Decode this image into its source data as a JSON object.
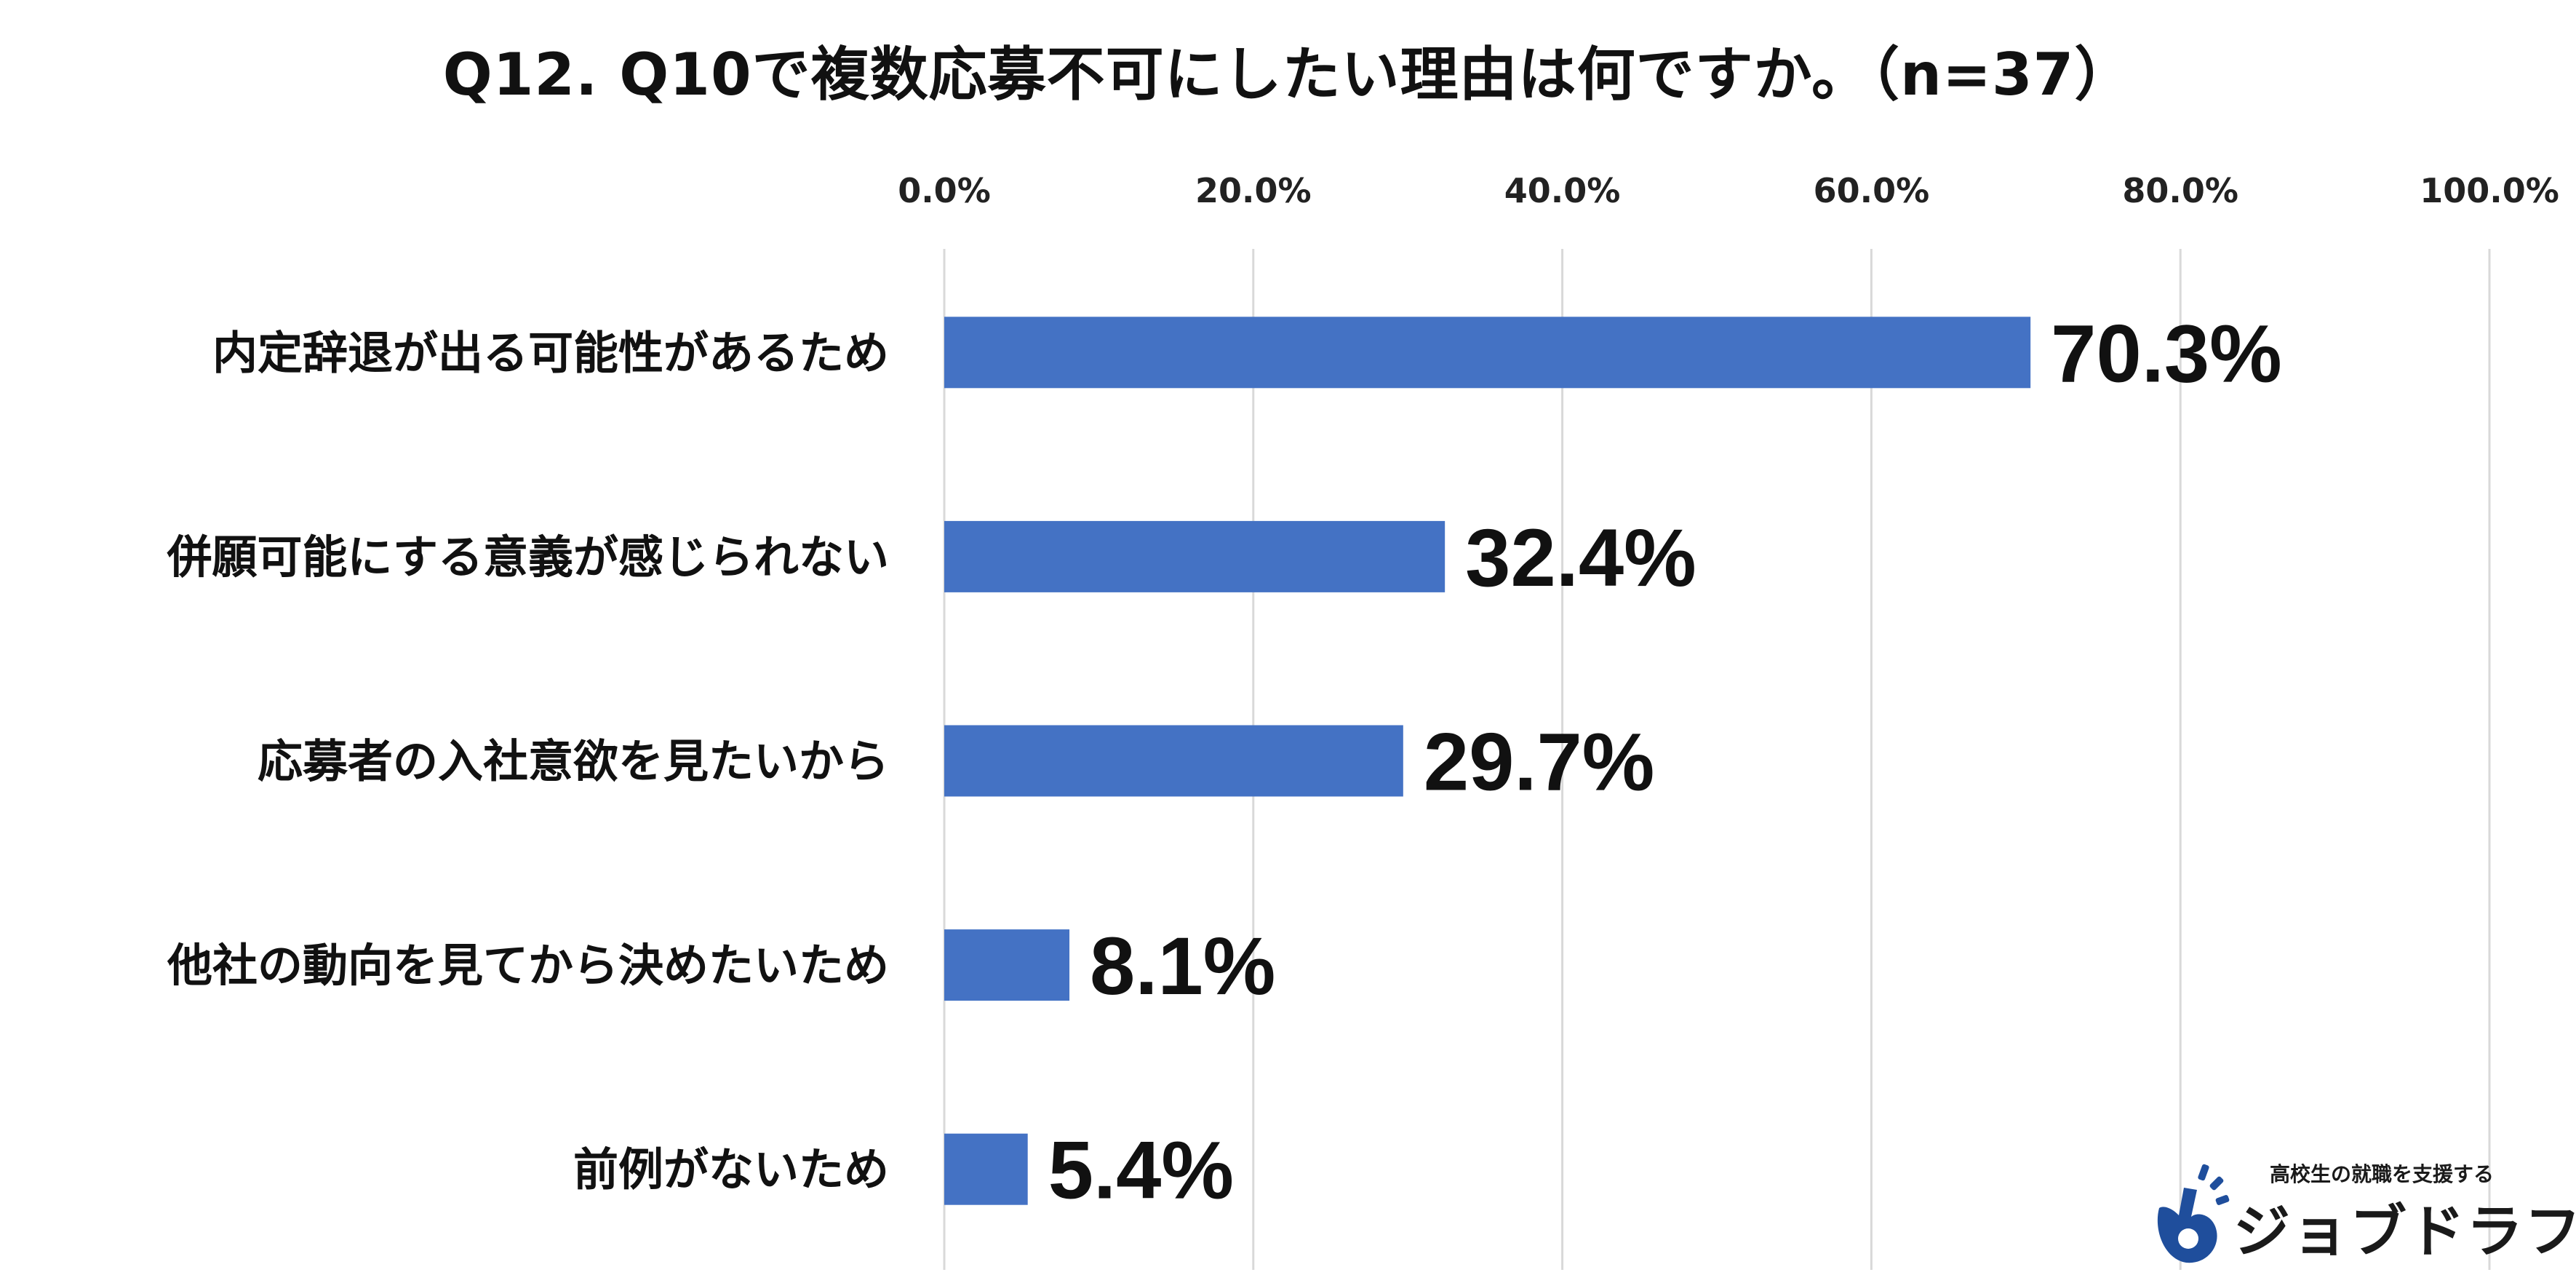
{
  "chart_data": {
    "type": "bar",
    "orientation": "horizontal",
    "title": "Q12. Q10で複数応募不可にしたい理由は何ですか。（n=37）",
    "categories": [
      "内定辞退が出る可能性があるため",
      "併願可能にする意義が感じられない",
      "応募者の入社意欲を見たいから",
      "他社の動向を見てから決めたいため",
      "前例がないため"
    ],
    "values": [
      70.3,
      32.4,
      29.7,
      8.1,
      5.4
    ],
    "data_labels": [
      "70.3%",
      "32.4%",
      "29.7%",
      "8.1%",
      "5.4%"
    ],
    "xlim": [
      0,
      100
    ],
    "x_ticks": [
      0,
      20,
      40,
      60,
      80,
      100
    ],
    "x_tick_labels": [
      "0.0%",
      "20.0%",
      "40.0%",
      "60.0%",
      "80.0%",
      "100.0%"
    ],
    "axis_position": "top",
    "grid": true,
    "bar_color": "#4472C4",
    "grid_color": "#D9D9D9"
  },
  "logo": {
    "tagline": "高校生の就職を支援する",
    "name": "ジョブドラフト",
    "mark_icon": "guitar-pick-icon",
    "color": "#1F4E9C"
  }
}
